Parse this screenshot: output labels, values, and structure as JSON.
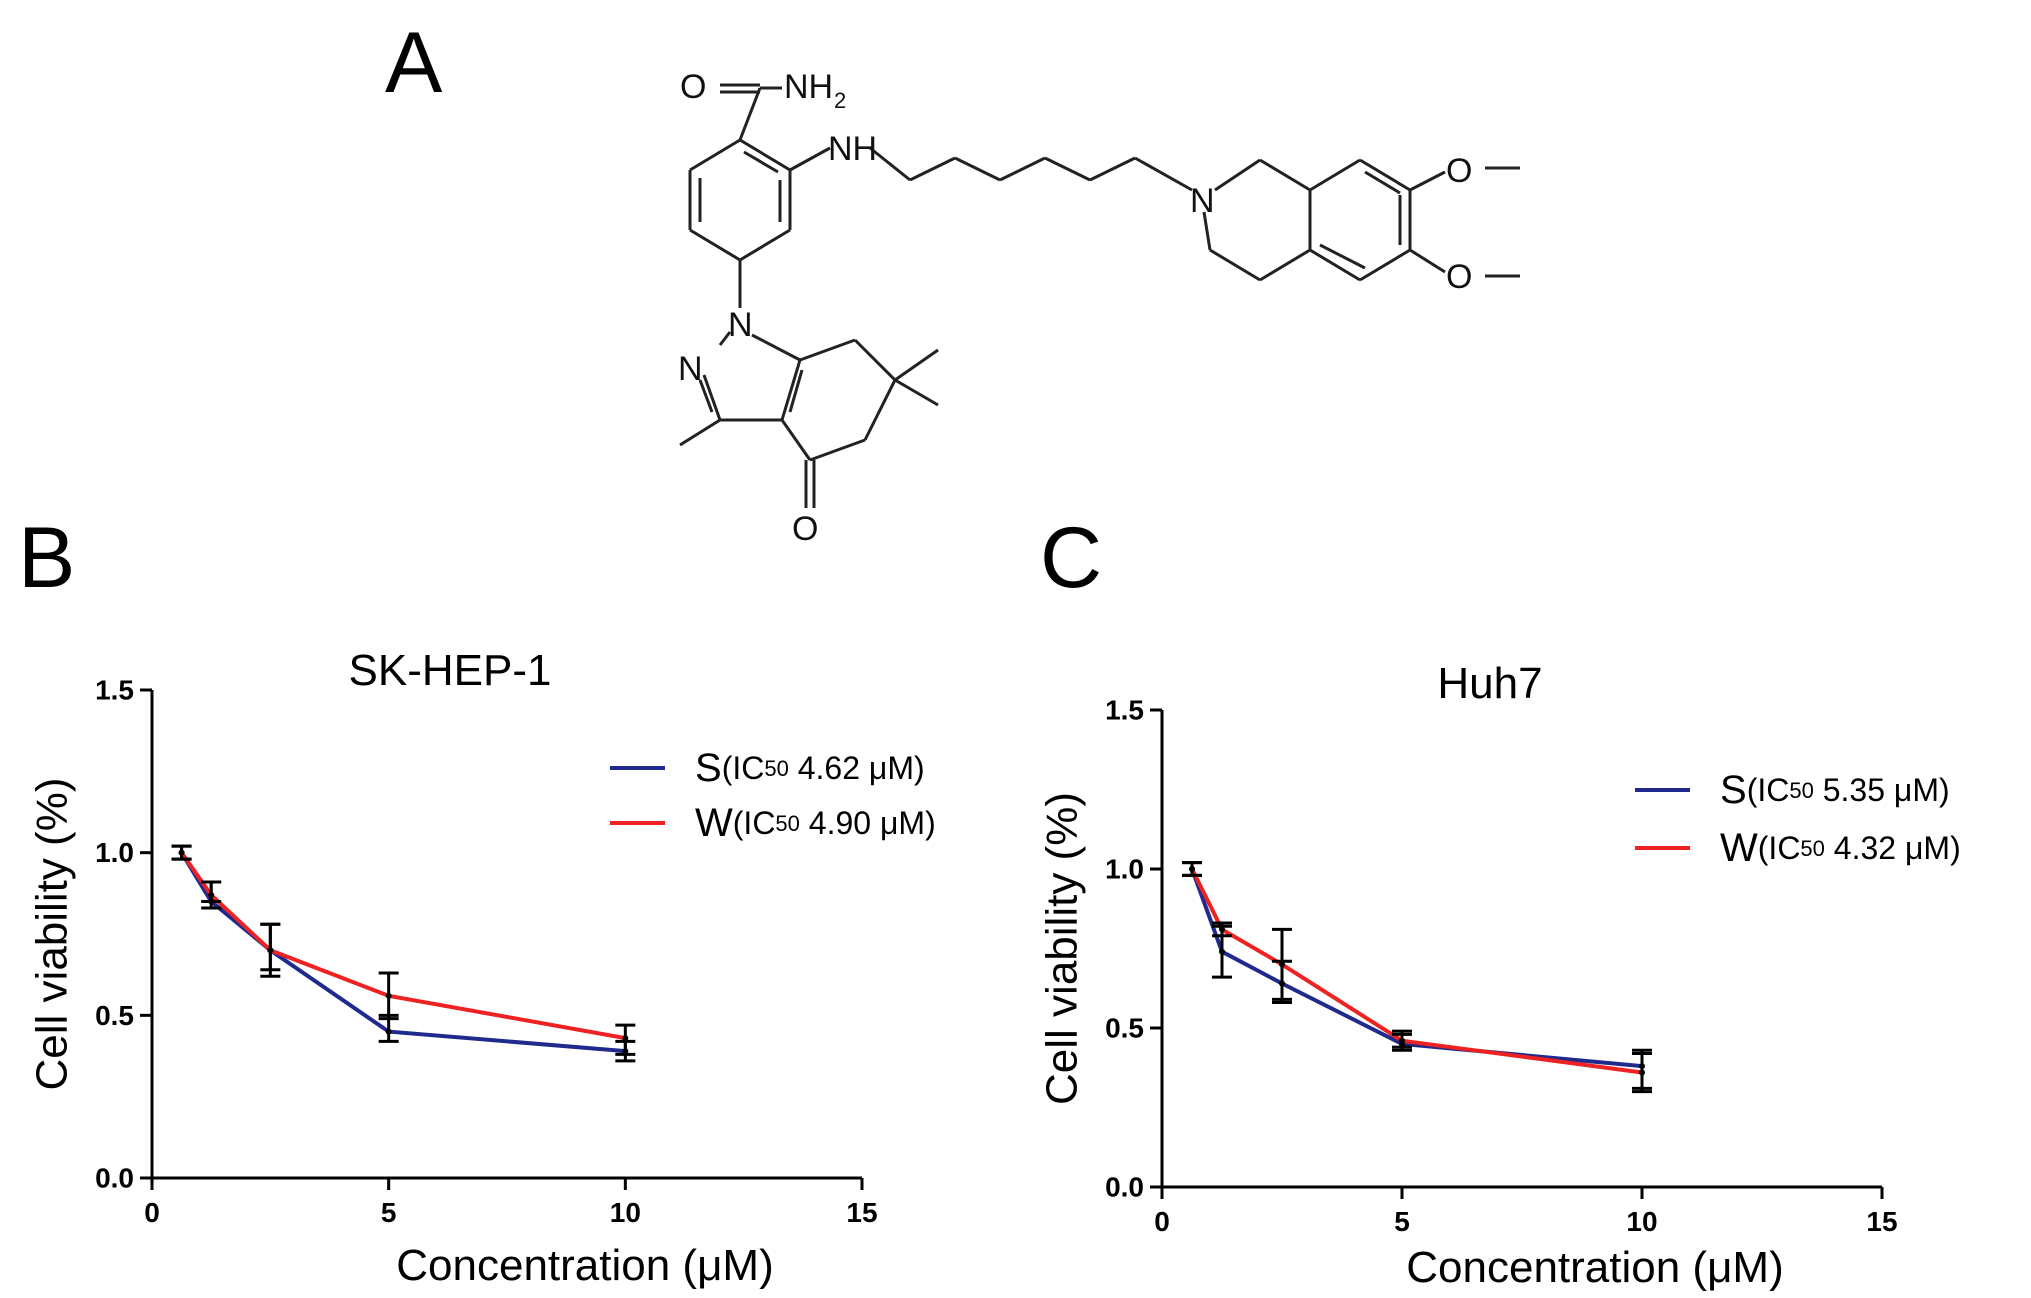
{
  "panels": {
    "a": "A",
    "b": "B",
    "c": "C"
  },
  "molecule": {
    "atoms": {
      "amide_o": "O",
      "nh2": "NH",
      "nh2_sub": "2",
      "nh": "NH",
      "n_iso": "N",
      "n_pyr1": "N",
      "n_pyr2": "N",
      "o_ketone": "O",
      "o_me1": "O",
      "o_me2": "O"
    }
  },
  "colors": {
    "series_s": "#1f2a8c",
    "series_w": "#ee2222",
    "error_bar": "#000000"
  },
  "chart_data": [
    {
      "type": "line",
      "title": "SK-HEP-1",
      "xlabel": "Concentration (μM)",
      "ylabel": "Cell viability (%)",
      "xlim": [
        0,
        15
      ],
      "ylim": [
        0,
        1.5
      ],
      "xticks": [
        "0",
        "5",
        "10",
        "15"
      ],
      "yticks": [
        "0.0",
        "0.5",
        "1.0",
        "1.5"
      ],
      "legend_position": "top-right",
      "grid": false,
      "series": [
        {
          "name": "S",
          "legend_detail": "(IC",
          "legend_sub": "50",
          "legend_value": " 4.62 μM)",
          "color": "#1f2a8c",
          "x": [
            0.625,
            1.25,
            2.5,
            5,
            10
          ],
          "y": [
            1.0,
            0.85,
            0.7,
            0.45,
            0.39
          ],
          "err_low": [
            0.98,
            0.83,
            0.62,
            0.42,
            0.36
          ],
          "err_high": [
            1.02,
            0.91,
            0.78,
            0.5,
            0.42
          ]
        },
        {
          "name": "W",
          "legend_detail": "(IC",
          "legend_sub": "50",
          "legend_value": " 4.90 μM)",
          "color": "#ee2222",
          "x": [
            0.625,
            1.25,
            2.5,
            5,
            10
          ],
          "y": [
            1.0,
            0.87,
            0.7,
            0.56,
            0.43
          ],
          "err_low": [
            0.98,
            0.85,
            0.64,
            0.49,
            0.38
          ],
          "err_high": [
            1.02,
            0.91,
            0.78,
            0.63,
            0.47
          ]
        }
      ]
    },
    {
      "type": "line",
      "title": "Huh7",
      "xlabel": "Concentration (μM)",
      "ylabel": "Cell viability (%)",
      "xlim": [
        0,
        15
      ],
      "ylim": [
        0,
        1.5
      ],
      "xticks": [
        "0",
        "5",
        "10",
        "15"
      ],
      "yticks": [
        "0.0",
        "0.5",
        "1.0",
        "1.5"
      ],
      "legend_position": "top-right",
      "grid": false,
      "series": [
        {
          "name": "S",
          "legend_detail": "(IC",
          "legend_sub": "50",
          "legend_value": " 5.35 μM)",
          "color": "#1f2a8c",
          "x": [
            0.625,
            1.25,
            2.5,
            5,
            10
          ],
          "y": [
            1.0,
            0.74,
            0.64,
            0.45,
            0.38
          ],
          "err_low": [
            0.98,
            0.66,
            0.58,
            0.43,
            0.3
          ],
          "err_high": [
            1.02,
            0.82,
            0.71,
            0.48,
            0.43
          ]
        },
        {
          "name": "W",
          "legend_detail": "(IC",
          "legend_sub": "50",
          "legend_value": " 4.32 μM)",
          "color": "#ee2222",
          "x": [
            0.625,
            1.25,
            2.5,
            5,
            10
          ],
          "y": [
            1.0,
            0.81,
            0.7,
            0.46,
            0.36
          ],
          "err_low": [
            0.98,
            0.79,
            0.59,
            0.44,
            0.31
          ],
          "err_high": [
            1.02,
            0.83,
            0.81,
            0.49,
            0.42
          ]
        }
      ]
    }
  ]
}
